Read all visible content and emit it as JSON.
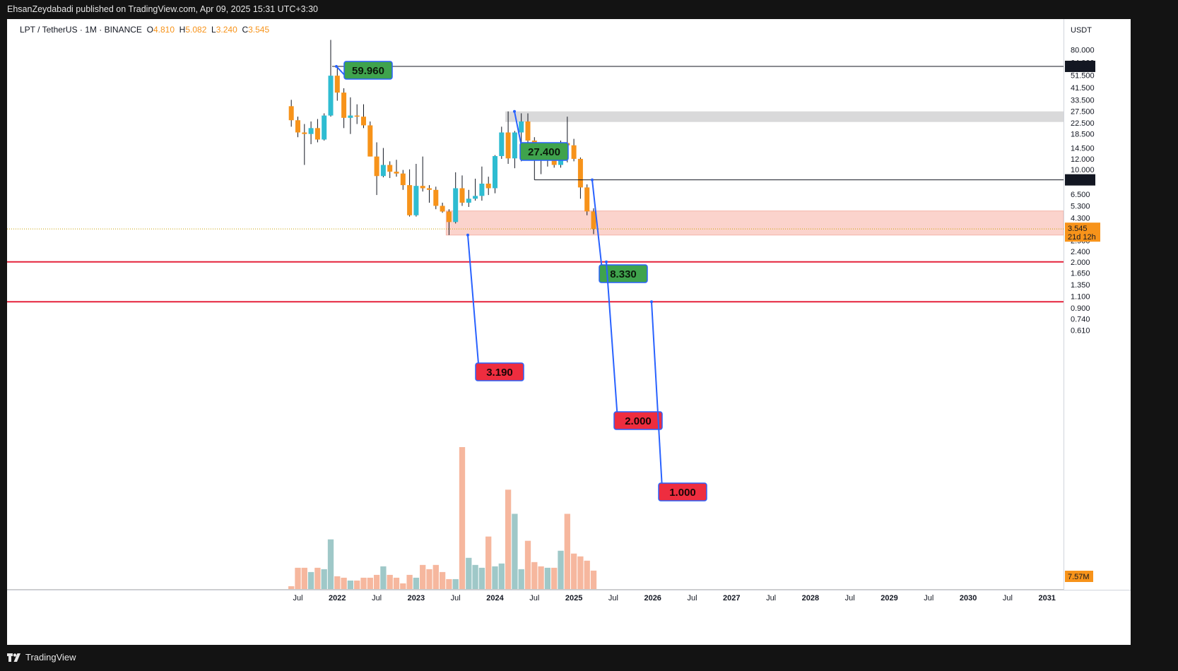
{
  "header": {
    "publisher_line": "EhsanZeydabadi published on TradingView.com, Apr 09, 2025 15:31 UTC+3:30"
  },
  "legend": {
    "symbol": "LPT / TetherUS · 1M · BINANCE",
    "o_label": "O",
    "o_value": "4.810",
    "h_label": "H",
    "h_value": "5.082",
    "l_label": "L",
    "l_value": "3.240",
    "c_label": "C",
    "c_value": "3.545"
  },
  "footer": {
    "brand": "TradingView"
  },
  "colors": {
    "up": "#2ebcd1",
    "down": "#f7931a",
    "vol_up": "#9fc8c8",
    "vol_down": "#f6b79e",
    "support_line": "#e5223b",
    "zone_red": "#fbd3cc",
    "zone_grey": "#d9d9da",
    "label_green": "#3fa34d",
    "label_red": "#ee2d3f",
    "label_border": "#2962ff"
  },
  "chart_data": {
    "type": "candlestick",
    "symbol": "LPT / TetherUS",
    "interval": "1M",
    "exchange": "BINANCE",
    "currency_label": "USDT",
    "y_scale": "log",
    "ylim": [
      0.5,
      95
    ],
    "x_ticks": [
      "Jul",
      "2022",
      "Jul",
      "2023",
      "Jul",
      "2024",
      "Jul",
      "2025",
      "Jul",
      "2026",
      "Jul",
      "2027",
      "Jul",
      "2028",
      "Jul",
      "2029",
      "Jul",
      "2030",
      "Jul",
      "2031"
    ],
    "y_ticks": [
      "80.000",
      "64.000",
      "51.500",
      "41.500",
      "33.500",
      "27.500",
      "22.500",
      "18.500",
      "14.500",
      "12.000",
      "10.000",
      "6.500",
      "5.300",
      "4.300",
      "2.900",
      "2.400",
      "2.000",
      "1.650",
      "1.350",
      "1.100",
      "0.900",
      "0.740",
      "0.610"
    ],
    "candles": [
      [
        "2021-06",
        30.0,
        33.5,
        21.0,
        23.5
      ],
      [
        "2021-07",
        23.5,
        25.0,
        17.5,
        19.0
      ],
      [
        "2021-08",
        19.0,
        22.0,
        10.8,
        18.5
      ],
      [
        "2021-09",
        18.5,
        23.0,
        15.5,
        20.5
      ],
      [
        "2021-10",
        20.5,
        24.0,
        16.0,
        16.8
      ],
      [
        "2021-11",
        16.8,
        26.5,
        16.5,
        25.5
      ],
      [
        "2021-12",
        25.5,
        95.0,
        25.0,
        51.0
      ],
      [
        "2022-01",
        51.0,
        59.96,
        33.0,
        38.0
      ],
      [
        "2022-02",
        38.0,
        41.0,
        20.5,
        24.5
      ],
      [
        "2022-03",
        24.5,
        35.0,
        18.5,
        25.5
      ],
      [
        "2022-04",
        25.5,
        31.0,
        22.0,
        25.0
      ],
      [
        "2022-05",
        25.0,
        31.0,
        20.5,
        21.5
      ],
      [
        "2022-06",
        21.5,
        23.0,
        12.5,
        12.5
      ],
      [
        "2022-07",
        12.5,
        16.0,
        6.4,
        8.9
      ],
      [
        "2022-08",
        8.9,
        14.5,
        8.7,
        10.8
      ],
      [
        "2022-09",
        10.8,
        11.5,
        8.6,
        9.6
      ],
      [
        "2022-10",
        9.6,
        11.8,
        8.8,
        9.3
      ],
      [
        "2022-11",
        9.3,
        9.9,
        7.0,
        7.6
      ],
      [
        "2022-12",
        7.6,
        10.0,
        4.4,
        4.5
      ],
      [
        "2023-01",
        4.5,
        11.0,
        4.4,
        7.5
      ],
      [
        "2023-02",
        7.5,
        12.5,
        6.8,
        7.2
      ],
      [
        "2023-03",
        7.2,
        7.6,
        5.6,
        7.0
      ],
      [
        "2023-04",
        7.0,
        7.4,
        5.0,
        5.3
      ],
      [
        "2023-05",
        5.3,
        5.6,
        4.7,
        4.8
      ],
      [
        "2023-06",
        4.8,
        5.0,
        3.19,
        4.0
      ],
      [
        "2023-07",
        4.0,
        9.5,
        3.9,
        7.2
      ],
      [
        "2023-08",
        7.2,
        9.0,
        5.3,
        5.6
      ],
      [
        "2023-09",
        5.6,
        7.0,
        5.2,
        6.0
      ],
      [
        "2023-10",
        6.0,
        8.5,
        5.8,
        6.3
      ],
      [
        "2023-11",
        6.3,
        10.5,
        5.8,
        7.8
      ],
      [
        "2023-12",
        7.8,
        8.8,
        6.4,
        7.2
      ],
      [
        "2024-01",
        7.2,
        12.8,
        6.6,
        12.6
      ],
      [
        "2024-02",
        12.6,
        21.0,
        12.0,
        19.0
      ],
      [
        "2024-03",
        19.0,
        27.4,
        11.0,
        12.1
      ],
      [
        "2024-04",
        12.1,
        19.5,
        10.2,
        19.0
      ],
      [
        "2024-05",
        19.0,
        26.5,
        11.5,
        23.0
      ],
      [
        "2024-06",
        23.0,
        26.5,
        15.5,
        16.5
      ],
      [
        "2024-07",
        16.5,
        17.5,
        12.5,
        13.5
      ],
      [
        "2024-08",
        13.5,
        15.5,
        9.2,
        11.9
      ],
      [
        "2024-09",
        11.9,
        14.8,
        10.5,
        13.5
      ],
      [
        "2024-10",
        13.5,
        15.5,
        10.3,
        10.8
      ],
      [
        "2024-11",
        10.8,
        16.5,
        10.3,
        15.8
      ],
      [
        "2024-12",
        15.8,
        25.0,
        11.3,
        15.2
      ],
      [
        "2025-01",
        15.2,
        17.0,
        11.5,
        12.0
      ],
      [
        "2025-02",
        12.0,
        12.3,
        6.0,
        7.3
      ],
      [
        "2025-03",
        7.3,
        7.7,
        4.5,
        4.81
      ],
      [
        "2025-04",
        4.81,
        5.082,
        3.24,
        3.545
      ]
    ],
    "volume": {
      "last_label": "7.57M",
      "bars_rel": [
        0.02,
        0.15,
        0.15,
        0.12,
        0.15,
        0.14,
        0.35,
        0.09,
        0.08,
        0.06,
        0.06,
        0.08,
        0.08,
        0.1,
        0.16,
        0.1,
        0.08,
        0.04,
        0.1,
        0.08,
        0.17,
        0.14,
        0.17,
        0.12,
        0.07,
        0.07,
        1.0,
        0.22,
        0.17,
        0.15,
        0.37,
        0.16,
        0.18,
        0.7,
        0.53,
        0.14,
        0.34,
        0.19,
        0.16,
        0.15,
        0.15,
        0.27,
        0.53,
        0.25,
        0.23,
        0.2,
        0.13
      ]
    },
    "horizontal_lines": [
      {
        "price": 59.96,
        "color": "#131722",
        "axis_tag": "59.960"
      },
      {
        "price": 8.33,
        "color": "#131722",
        "axis_tag": "8.330"
      },
      {
        "price": 2.0,
        "color": "#e5223b",
        "axis_tag": ""
      },
      {
        "price": 1.0,
        "color": "#e5223b",
        "axis_tag": ""
      }
    ],
    "zones": [
      {
        "name": "resistance",
        "from_date": "2024-03",
        "top": 27.4,
        "bottom": 22.8,
        "color": "#d9d9da"
      },
      {
        "name": "support",
        "from_date": "2023-06",
        "top": 4.85,
        "bottom": 3.19,
        "color": "#fbd3cc"
      }
    ],
    "callouts": [
      {
        "text": "59.960",
        "price": 59.96,
        "style": "green"
      },
      {
        "text": "27.400",
        "price": 27.4,
        "style": "green"
      },
      {
        "text": "8.330",
        "price": 8.33,
        "style": "green"
      },
      {
        "text": "3.190",
        "price": 3.19,
        "style": "red"
      },
      {
        "text": "2.000",
        "price": 2.0,
        "style": "red"
      },
      {
        "text": "1.000",
        "price": 1.0,
        "style": "red"
      }
    ],
    "last_price": {
      "value": "3.545",
      "countdown": "21d 12h"
    }
  }
}
